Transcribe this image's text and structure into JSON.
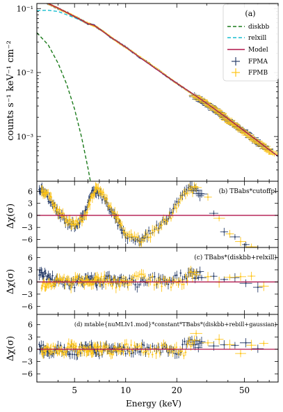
{
  "chart_data": [
    {
      "panel": "a",
      "type": "line",
      "label": "(a)",
      "ylabel": "counts  s⁻¹ keV⁻¹ cm⁻²",
      "yscale": "log",
      "ylim": [
        0.0002,
        0.12
      ],
      "xscale": "log",
      "xlim": [
        3,
        79
      ],
      "yticks": [
        {
          "value": 0.1,
          "label": "10⁻¹"
        },
        {
          "value": 0.01,
          "label": "10⁻²"
        },
        {
          "value": 0.001,
          "label": "10⁻³"
        }
      ],
      "legend": {
        "placement": "top-right",
        "entries": [
          "diskbb",
          "relxill",
          "Model",
          "FPMA",
          "FPMB"
        ]
      },
      "series": [
        {
          "name": "diskbb",
          "style": "dashed",
          "color": "#1a7a1a",
          "x": [
            3,
            3.5,
            4,
            4.5,
            5,
            5.5,
            6,
            6.2
          ],
          "y": [
            0.042,
            0.027,
            0.014,
            0.0065,
            0.0027,
            0.00098,
            0.00032,
            0.0002
          ]
        },
        {
          "name": "relxill",
          "style": "dashed",
          "color": "#17becf",
          "x": [
            3,
            3.5,
            4,
            5,
            6,
            6.5,
            7,
            8,
            10,
            12,
            15,
            20,
            25,
            30,
            40,
            50,
            60,
            70,
            79
          ],
          "y": [
            0.093,
            0.094,
            0.09,
            0.072,
            0.058,
            0.055,
            0.048,
            0.037,
            0.025,
            0.0175,
            0.0115,
            0.0068,
            0.0046,
            0.0033,
            0.0019,
            0.00122,
            0.00085,
            0.00062,
            0.00049
          ]
        },
        {
          "name": "Model",
          "style": "solid",
          "color": "#b0154a",
          "x": [
            3,
            3.5,
            4,
            5,
            6,
            6.5,
            7,
            8,
            10,
            12,
            15,
            20,
            25,
            30,
            40,
            50,
            60,
            70,
            79
          ],
          "y": [
            0.14,
            0.12,
            0.102,
            0.075,
            0.058,
            0.055,
            0.048,
            0.037,
            0.025,
            0.0175,
            0.0115,
            0.0068,
            0.0046,
            0.0033,
            0.0019,
            0.00122,
            0.00085,
            0.00062,
            0.00049
          ]
        },
        {
          "name": "FPMA",
          "type": "scatter",
          "color": "#2a3f6a",
          "x": [
            3.1,
            3.3,
            3.6,
            4,
            4.5,
            5,
            5.5,
            6,
            6.5,
            7,
            8,
            9,
            10,
            12,
            14,
            17,
            20,
            24,
            28,
            33,
            38,
            44,
            51,
            60,
            70
          ],
          "y": [
            0.135,
            0.127,
            0.115,
            0.1,
            0.087,
            0.075,
            0.066,
            0.058,
            0.055,
            0.048,
            0.037,
            0.03,
            0.025,
            0.0175,
            0.0135,
            0.0092,
            0.0068,
            0.0049,
            0.0036,
            0.0027,
            0.002,
            0.0015,
            0.00115,
            0.0008,
            0.0006
          ]
        },
        {
          "name": "FPMB",
          "type": "scatter",
          "color": "#ffc414",
          "x": [
            3.2,
            3.45,
            3.8,
            4.2,
            4.7,
            5.2,
            5.8,
            6.3,
            6.8,
            7.5,
            8.5,
            9.5,
            11,
            13,
            15.5,
            18.5,
            22,
            26,
            30.5,
            35.5,
            41,
            47.5,
            55,
            65,
            75
          ],
          "y": [
            0.13,
            0.122,
            0.108,
            0.095,
            0.082,
            0.071,
            0.061,
            0.056,
            0.051,
            0.043,
            0.033,
            0.027,
            0.021,
            0.0155,
            0.0112,
            0.0078,
            0.0057,
            0.0042,
            0.0032,
            0.0024,
            0.0017,
            0.0013,
            0.00095,
            0.0007,
            0.00052
          ]
        }
      ]
    },
    {
      "panel": "b",
      "type": "scatter",
      "label": "(b) TBabs*cutoffpl",
      "ylabel": "Δχ(σ)",
      "ylim": [
        -8,
        8.5
      ],
      "yticks": [
        6,
        3,
        0,
        -3,
        -6
      ],
      "reference_line": 0,
      "residuals": {
        "FPMA": {
          "x": [
            3.1,
            3.3,
            3.6,
            4,
            4.5,
            5,
            5.5,
            6,
            6.5,
            7,
            8,
            9,
            10,
            12,
            14,
            17,
            20,
            24,
            28,
            33,
            38,
            44,
            51,
            60,
            70
          ],
          "y": [
            6.5,
            6,
            3.5,
            0.5,
            -1.5,
            -2.5,
            -1,
            3,
            6.5,
            5.5,
            2,
            -2,
            -5,
            -6.5,
            -4,
            -1.5,
            3.5,
            7,
            5,
            1,
            -3.5,
            -6,
            -8,
            -9,
            -9.5
          ]
        },
        "FPMB": {
          "x": [
            3.2,
            3.45,
            3.8,
            4.2,
            4.7,
            5.2,
            5.8,
            6.3,
            6.8,
            7.5,
            8.5,
            9.5,
            11,
            13,
            15.5,
            18.5,
            22,
            26,
            30.5,
            35.5,
            41,
            47.5,
            55,
            65,
            75
          ],
          "y": [
            6,
            5.5,
            2.5,
            0,
            -1.8,
            -2,
            0,
            4.5,
            7,
            5,
            0.5,
            -3,
            -6,
            -6,
            -3,
            0,
            5,
            7,
            4,
            -0.5,
            -4.5,
            -6.5,
            -8.5,
            -9,
            -9.5
          ]
        }
      }
    },
    {
      "panel": "c",
      "type": "scatter",
      "label": "(c) TBabs*(diskbb+relxill)",
      "ylabel": "Δχ(σ)",
      "ylim": [
        -8,
        8.5
      ],
      "yticks": [
        6,
        3,
        0,
        -3,
        -6
      ],
      "reference_line": 0,
      "residuals": {
        "FPMA": {
          "x": [
            3.1,
            3.3,
            3.6,
            4,
            4.5,
            5,
            5.5,
            6,
            6.5,
            7,
            8,
            9,
            10,
            12,
            14,
            17,
            20,
            24,
            28,
            33,
            38,
            44,
            51,
            60,
            70
          ],
          "y": [
            2.5,
            2,
            1,
            0.5,
            0,
            -0.5,
            0.5,
            1,
            0.5,
            0,
            1,
            0.5,
            0,
            -0.5,
            0.5,
            0,
            1,
            2,
            1.5,
            1,
            0.5,
            1.5,
            0,
            -0.5,
            0
          ]
        },
        "FPMB": {
          "x": [
            3.2,
            3.45,
            3.8,
            4.2,
            4.7,
            5.2,
            5.8,
            6.3,
            6.8,
            7.5,
            8.5,
            9.5,
            11,
            13,
            15.5,
            18.5,
            22,
            26,
            30.5,
            35.5,
            41,
            47.5,
            55,
            65,
            75
          ],
          "y": [
            -0.5,
            -1,
            0,
            0.5,
            -0.5,
            0.5,
            0,
            -0.5,
            1,
            0.5,
            -0.5,
            0,
            0.5,
            1,
            0,
            -0.5,
            0.5,
            2.5,
            2,
            1,
            2,
            0.5,
            1,
            0,
            0.5
          ]
        }
      }
    },
    {
      "panel": "d",
      "type": "scatter",
      "label": "(d) mtable{nuMLIv1.mod}*constant*TBabs*(diskbb+rebill+gaussian)",
      "ylabel": "Δχ(σ)",
      "ylim": [
        -8,
        8.5
      ],
      "yticks": [
        6,
        3,
        0,
        -3,
        -6
      ],
      "reference_line": 0,
      "xlabel": "Energy (keV)",
      "xscale": "log",
      "xticks": [
        5,
        10,
        20,
        50
      ],
      "residuals": {
        "FPMA": {
          "x": [
            3.1,
            3.3,
            3.6,
            4,
            4.5,
            5,
            5.5,
            6,
            6.5,
            7,
            8,
            9,
            10,
            12,
            14,
            17,
            20,
            24,
            28,
            33,
            38,
            44,
            51,
            60,
            70
          ],
          "y": [
            0.5,
            0,
            -0.5,
            0.5,
            0,
            -0.5,
            0,
            0.5,
            0,
            -0.5,
            0.5,
            0,
            -0.5,
            0,
            0.5,
            0,
            -0.5,
            2,
            1,
            1.5,
            0,
            0.5,
            1,
            0,
            -0.5
          ]
        },
        "FPMB": {
          "x": [
            3.2,
            3.45,
            3.8,
            4.2,
            4.7,
            5.2,
            5.8,
            6.3,
            6.8,
            7.5,
            8.5,
            9.5,
            11,
            13,
            15.5,
            18.5,
            22,
            26,
            30.5,
            35.5,
            41,
            47.5,
            55,
            65,
            75
          ],
          "y": [
            -0.5,
            0.5,
            0,
            -0.5,
            0.5,
            0,
            -0.5,
            0,
            0.5,
            0,
            -0.5,
            0.5,
            0,
            -0.5,
            0,
            0.5,
            -0.5,
            3,
            1.5,
            2,
            0.5,
            -0.5,
            1,
            0.5,
            0
          ]
        }
      }
    }
  ],
  "colors": {
    "model": "#b0154a",
    "diskbb": "#1a7a1a",
    "relxill": "#17becf",
    "fpma": "#2a3f6a",
    "fpmb": "#ffc414"
  }
}
